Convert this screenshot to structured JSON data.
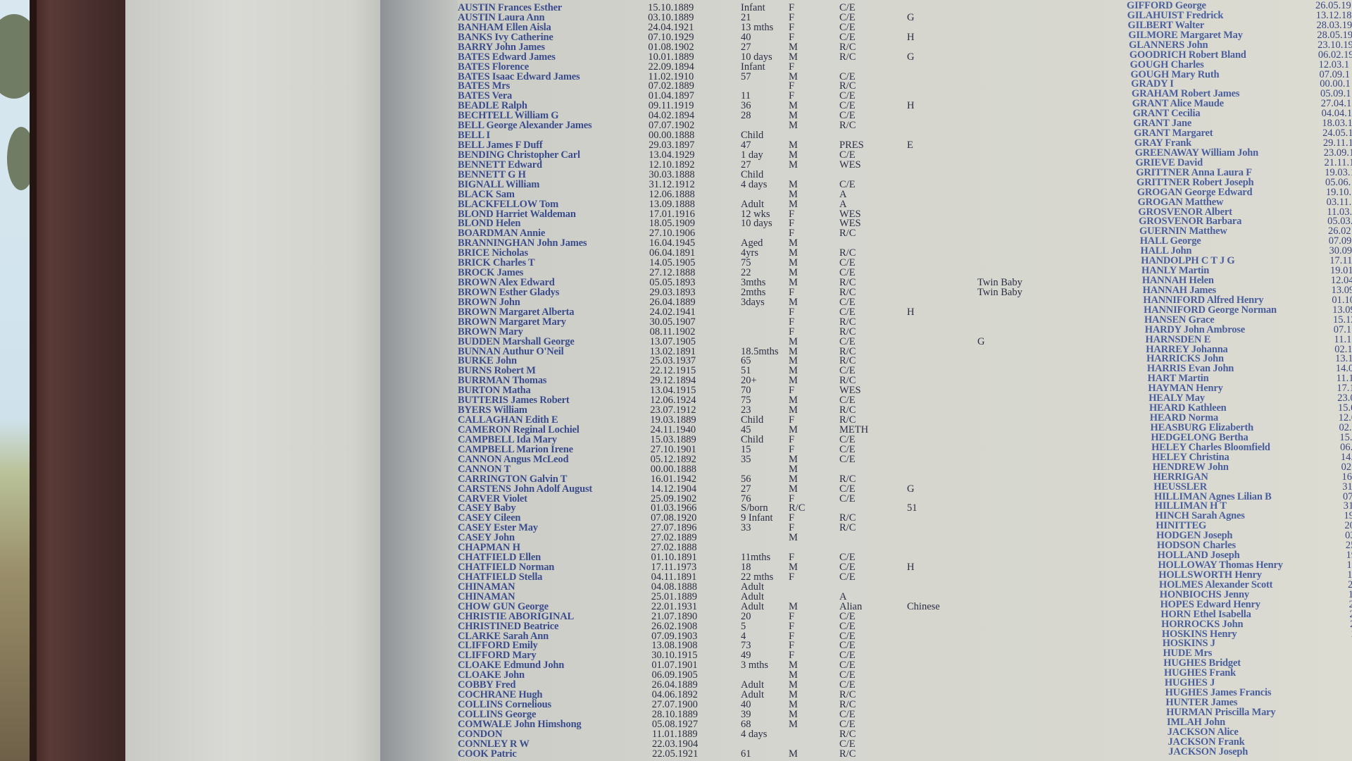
{
  "left_list": [
    [
      "AUSTIN Frances Esther",
      "15.10.1889",
      "Infant",
      "F",
      "C/E",
      "",
      ""
    ],
    [
      "AUSTIN Laura Ann",
      "03.10.1889",
      "21",
      "F",
      "C/E",
      "G",
      ""
    ],
    [
      "BANHAM Ellen Aisla",
      "24.04.1921",
      "13 mths",
      "F",
      "C/E",
      "",
      ""
    ],
    [
      "BANKS Ivy Catherine",
      "07.10.1929",
      "40",
      "F",
      "C/E",
      "H",
      ""
    ],
    [
      "BARRY John James",
      "01.08.1902",
      "27",
      "M",
      "R/C",
      "",
      ""
    ],
    [
      "BATES Edward James",
      "10.01.1889",
      "10 days",
      "M",
      "R/C",
      "G",
      ""
    ],
    [
      "BATES Florence",
      "22.09.1894",
      "Infant",
      "F",
      "",
      "",
      ""
    ],
    [
      "BATES Isaac Edward James",
      "11.02.1910",
      "57",
      "M",
      "C/E",
      "",
      ""
    ],
    [
      "BATES Mrs",
      "07.02.1889",
      "",
      "F",
      "R/C",
      "",
      ""
    ],
    [
      "BATES Vera",
      "01.04.1897",
      "11",
      "F",
      "C/E",
      "",
      ""
    ],
    [
      "BEADLE Ralph",
      "09.11.1919",
      "36",
      "M",
      "C/E",
      "H",
      ""
    ],
    [
      "BECHTELL William G",
      "04.02.1894",
      "28",
      "M",
      "C/E",
      "",
      ""
    ],
    [
      "BELL George Alexander James",
      "07.07.1902",
      "",
      "M",
      "R/C",
      "",
      ""
    ],
    [
      "BELL I",
      "00.00.1888",
      "Child",
      "",
      "",
      "",
      ""
    ],
    [
      "BELL James F Duff",
      "29.03.1897",
      "47",
      "M",
      "PRES",
      "E",
      ""
    ],
    [
      "BENDING Christopher Carl",
      "13.04.1929",
      "1 day",
      "M",
      "C/E",
      "",
      ""
    ],
    [
      "BENNETT Edward",
      "12.10.1892",
      "27",
      "M",
      "WES",
      "",
      ""
    ],
    [
      "BENNETT G H",
      "30.03.1888",
      "Child",
      "",
      "",
      "",
      ""
    ],
    [
      "BIGNALL William",
      "31.12.1912",
      "4 days",
      "M",
      "C/E",
      "",
      ""
    ],
    [
      "BLACK Sam",
      "12.06.1888",
      "",
      "M",
      "A",
      "",
      ""
    ],
    [
      "BLACKFELLOW Tom",
      "13.09.1888",
      "Adult",
      "M",
      "A",
      "",
      ""
    ],
    [
      "BLOND Harriet Waldeman",
      "17.01.1916",
      "12 wks",
      "F",
      "WES",
      "",
      ""
    ],
    [
      "BLOND Helen",
      "18.05.1909",
      "10 days",
      "F",
      "WES",
      "",
      ""
    ],
    [
      "BOARDMAN Annie",
      "27.10.1906",
      "",
      "F",
      "R/C",
      "",
      ""
    ],
    [
      "BRANNINGHAN John James",
      "16.04.1945",
      "Aged",
      "M",
      "",
      "",
      ""
    ],
    [
      "BRICE Nicholas",
      "06.04.1891",
      "4yrs",
      "M",
      "R/C",
      "",
      ""
    ],
    [
      "BRICK Charles T",
      "14.05.1905",
      "75",
      "M",
      "C/E",
      "",
      ""
    ],
    [
      "BROCK James",
      "27.12.1888",
      "22",
      "M",
      "C/E",
      "",
      ""
    ],
    [
      "BROWN Alex Edward",
      "05.05.1893",
      "3mths",
      "M",
      "R/C",
      "",
      "Twin Baby"
    ],
    [
      "BROWN Esther Gladys",
      "29.03.1893",
      "2mths",
      "F",
      "R/C",
      "",
      "Twin Baby"
    ],
    [
      "BROWN John",
      "26.04.1889",
      "3days",
      "M",
      "C/E",
      "",
      ""
    ],
    [
      "BROWN Margaret Alberta",
      "24.02.1941",
      "",
      "F",
      "C/E",
      "H",
      ""
    ],
    [
      "BROWN Margaret Mary",
      "30.05.1907",
      "",
      "F",
      "R/C",
      "",
      ""
    ],
    [
      "BROWN Mary",
      "08.11.1902",
      "",
      "F",
      "R/C",
      "",
      ""
    ],
    [
      "BUDDEN Marshall George",
      "13.07.1905",
      "",
      "M",
      "C/E",
      "",
      "G"
    ],
    [
      "BUNNAN Authur O'Neil",
      "13.02.1891",
      "18.5mths",
      "M",
      "R/C",
      "",
      ""
    ],
    [
      "BURKE John",
      "25.03.1937",
      "65",
      "M",
      "R/C",
      "",
      ""
    ],
    [
      "BURNS Robert M",
      "22.12.1915",
      "51",
      "M",
      "C/E",
      "",
      ""
    ],
    [
      "BURRMAN Thomas",
      "29.12.1894",
      "20+",
      "M",
      "R/C",
      "",
      ""
    ],
    [
      "BURTON Matha",
      "13.04.1915",
      "70",
      "F",
      "WES",
      "",
      ""
    ],
    [
      "BUTTERIS James Robert",
      "12.06.1924",
      "75",
      "M",
      "C/E",
      "",
      ""
    ],
    [
      "BYERS William",
      "23.07.1912",
      "23",
      "M",
      "R/C",
      "",
      ""
    ],
    [
      "CALLAGHAN Edith E",
      "19.03.1889",
      "Child",
      "F",
      "R/C",
      "",
      ""
    ],
    [
      "CAMERON Reginal Lochiel",
      "24.11.1940",
      "45",
      "M",
      "METH",
      "",
      ""
    ],
    [
      "CAMPBELL Ida Mary",
      "15.03.1889",
      "Child",
      "F",
      "C/E",
      "",
      ""
    ],
    [
      "CAMPBELL Marion Irene",
      "27.10.1901",
      "15",
      "F",
      "C/E",
      "",
      ""
    ],
    [
      "CANNON Angus McLeod",
      "05.12.1892",
      "35",
      "M",
      "C/E",
      "",
      ""
    ],
    [
      "CANNON T",
      "00.00.1888",
      "",
      "M",
      "",
      "",
      ""
    ],
    [
      "CARRINGTON Galvin T",
      "16.01.1942",
      "56",
      "M",
      "R/C",
      "",
      ""
    ],
    [
      "CARSTENS John Adolf August",
      "14.12.1904",
      "27",
      "M",
      "C/E",
      "G",
      ""
    ],
    [
      "CARVER Violet",
      "25.09.1902",
      "76",
      "F",
      "C/E",
      "",
      ""
    ],
    [
      "CASEY Baby",
      "01.03.1966",
      "S/born",
      "R/C",
      "",
      "51",
      ""
    ],
    [
      "CASEY Cileen",
      "07.08.1920",
      "9 Infant",
      "F",
      "R/C",
      "",
      ""
    ],
    [
      "CASEY Ester May",
      "27.07.1896",
      "33",
      "F",
      "R/C",
      "",
      ""
    ],
    [
      "CASEY John",
      "27.02.1889",
      "",
      "M",
      "",
      "",
      ""
    ],
    [
      "CHAPMAN H",
      "27.02.1888",
      "",
      "",
      "",
      "",
      ""
    ],
    [
      "CHATFIELD Ellen",
      "01.10.1891",
      "11mths",
      "F",
      "C/E",
      "",
      ""
    ],
    [
      "CHATFIELD Norman",
      "17.11.1973",
      "18",
      "M",
      "C/E",
      "H",
      ""
    ],
    [
      "CHATFIELD Stella",
      "04.11.1891",
      "22 mths",
      "F",
      "C/E",
      "",
      ""
    ],
    [
      "CHINAMAN",
      "04.08.1888",
      "Adult",
      "",
      "",
      "",
      ""
    ],
    [
      "CHINAMAN",
      "25.01.1889",
      "Adult",
      "",
      "A",
      "",
      ""
    ],
    [
      "CHOW GUN George",
      "22.01.1931",
      "Adult",
      "M",
      "Alian",
      "Chinese",
      ""
    ],
    [
      "CHRISTIE ABORIGINAL",
      "21.07.1890",
      "20",
      "F",
      "C/E",
      "",
      ""
    ],
    [
      "CHRISTINED Beatrice",
      "26.02.1908",
      "5",
      "F",
      "C/E",
      "",
      ""
    ],
    [
      "CLARKE Sarah Ann",
      "07.09.1903",
      "4",
      "F",
      "C/E",
      "",
      ""
    ],
    [
      "CLIFFORD Emily",
      "13.08.1908",
      "73",
      "F",
      "C/E",
      "",
      ""
    ],
    [
      "CLIFFORD Mary",
      "30.10.1915",
      "49",
      "F",
      "C/E",
      "",
      ""
    ],
    [
      "CLOAKE Edmund John",
      "01.07.1901",
      "3 mths",
      "M",
      "C/E",
      "",
      ""
    ],
    [
      "CLOAKE John",
      "06.09.1905",
      "",
      "M",
      "C/E",
      "",
      ""
    ],
    [
      "COBBY Fred",
      "26.04.1889",
      "Adult",
      "M",
      "C/E",
      "",
      ""
    ],
    [
      "COCHRANE Hugh",
      "04.06.1892",
      "Adult",
      "M",
      "R/C",
      "",
      ""
    ],
    [
      "COLLINS Cornelious",
      "27.07.1900",
      "40",
      "M",
      "R/C",
      "",
      ""
    ],
    [
      "COLLINS George",
      "28.10.1889",
      "39",
      "M",
      "C/E",
      "",
      ""
    ],
    [
      "COMWALE John Himshong",
      "05.08.1927",
      "68",
      "M",
      "C/E",
      "",
      ""
    ],
    [
      "CONDON",
      "11.01.1889",
      "4 days",
      "",
      "R/C",
      "",
      ""
    ],
    [
      "CONNLEY R W",
      "22.03.1904",
      "",
      "",
      "C/E",
      "",
      ""
    ],
    [
      "COOK Patric",
      "22.05.1921",
      "61",
      "M",
      "R/C",
      "",
      ""
    ]
  ],
  "right_list": [
    [
      "GIFFORD George",
      "26.05.19"
    ],
    [
      "GILAHUIST Fredrick",
      "13.12.18"
    ],
    [
      "GILBERT Walter",
      "28.03.19"
    ],
    [
      "GILMORE Margaret May",
      "28.05.19"
    ],
    [
      "GLANNERS John",
      "23.10.19"
    ],
    [
      "GOODRICH Robert Bland",
      "06.02.19"
    ],
    [
      "GOUGH Charles",
      "12.03.1"
    ],
    [
      "GOUGH Mary Ruth",
      "07.09.1"
    ],
    [
      "GRADY I",
      "00.00.1"
    ],
    [
      "GRAHAM Robert James",
      "05.09.1"
    ],
    [
      "GRANT Alice Maude",
      "27.04.1"
    ],
    [
      "GRANT Cecilia",
      "04.04.1"
    ],
    [
      "GRANT Jane",
      "18.03.1"
    ],
    [
      "GRANT Margaret",
      "24.05.1"
    ],
    [
      "GRAY Frank",
      "29.11.1"
    ],
    [
      "GREENAWAY William John",
      "23.09.1"
    ],
    [
      "GRIEVE David",
      "21.11.1"
    ],
    [
      "GRITTNER Anna Laura F",
      "19.03.1"
    ],
    [
      "GRITTNER Robert Joseph",
      "05.06."
    ],
    [
      "GROGAN George Edward",
      "19.10."
    ],
    [
      "GROGAN Matthew",
      "03.11."
    ],
    [
      "GROSVENOR Albert",
      "11.03."
    ],
    [
      "GROSVENOR Barbara",
      "05.03."
    ],
    [
      "GUERNIN Matthew",
      "26.02"
    ],
    [
      "HALL George",
      "07.09"
    ],
    [
      "HALL John",
      "30.09"
    ],
    [
      "HANDOLPH C T J G",
      "17.11"
    ],
    [
      "HANLY Martin",
      "19.01"
    ],
    [
      "HANNAH Helen",
      "12.04"
    ],
    [
      "HANNAH James",
      "13.09"
    ],
    [
      "HANNIFORD Alfred Henry",
      "01.10"
    ],
    [
      "HANNIFORD George Norman",
      "13.09"
    ],
    [
      "HANSEN Grace",
      "15.12"
    ],
    [
      "HARDY John Ambrose",
      "07.1"
    ],
    [
      "HARNSDEN E",
      "11.1"
    ],
    [
      "HARREY Johanna",
      "02.1"
    ],
    [
      "HARRICKS John",
      "13.1"
    ],
    [
      "HARRIS Evan John",
      "14.0"
    ],
    [
      "HART Martin",
      "11.1"
    ],
    [
      "HAYMAN Henry",
      "17.1"
    ],
    [
      "HEALY May",
      "23.0"
    ],
    [
      "HEARD Kathleen",
      "15.0"
    ],
    [
      "HEARD Norma",
      "12.0"
    ],
    [
      "HEASBURG Elizaberth",
      "02.0"
    ],
    [
      "HEDGELONG Bertha",
      "15.0"
    ],
    [
      "HELEY Charles Bloomfield",
      "06."
    ],
    [
      "HELEY Christina",
      "14."
    ],
    [
      "HENDREW John",
      "02."
    ],
    [
      "HERRIGAN",
      "16."
    ],
    [
      "HEUSSLER",
      "31."
    ],
    [
      "HILLIMAN Agnes Lilian B",
      "07."
    ],
    [
      "HILLIMAN H T",
      "31"
    ],
    [
      "HINCH Sarah Agnes",
      "19"
    ],
    [
      "HINITTEG",
      "20"
    ],
    [
      "HODGEN Joseph",
      "03"
    ],
    [
      "HODSON Charles",
      "25"
    ],
    [
      "HOLLAND Joseph",
      "19"
    ],
    [
      "HOLLOWAY Thomas Henry",
      "15"
    ],
    [
      "HOLLSWORTH Henry",
      "18"
    ],
    [
      "HOLMES Alexander Scott",
      "2"
    ],
    [
      "HONBIOCHS Jenny",
      "15"
    ],
    [
      "HOPES Edward Henry",
      "2"
    ],
    [
      "HORN Ethel Isabella",
      "2"
    ],
    [
      "HORROCKS John",
      "2"
    ],
    [
      "HOSKINS Henry",
      "1"
    ],
    [
      "HOSKINS J",
      "1"
    ],
    [
      "HUDE Mrs",
      "2"
    ],
    [
      "HUGHES Bridget",
      "2"
    ],
    [
      "HUGHES Frank",
      "1"
    ],
    [
      "HUGHES J",
      "0"
    ],
    [
      "HUGHES James Francis",
      "1"
    ],
    [
      "HUNTER James",
      "1"
    ],
    [
      "HURMAN Priscilla Mary",
      "0"
    ],
    [
      "IMLAH John",
      ""
    ],
    [
      "JACKSON Alice",
      ""
    ],
    [
      "JACKSON Frank",
      ""
    ],
    [
      "JACKSON Joseph",
      ""
    ]
  ],
  "colors": {
    "name_text": "#3b4c8c",
    "detail_text": "#2a2e44",
    "post": "#4a3030",
    "board": "#d7d7cf"
  }
}
